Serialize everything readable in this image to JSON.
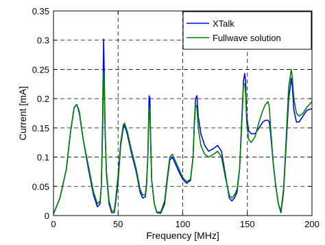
{
  "chart_data": {
    "type": "line",
    "xlabel": "Frequency [MHz]",
    "ylabel": "Current [mA]",
    "xlim": [
      0,
      200
    ],
    "ylim": [
      0,
      0.35
    ],
    "xticks": [
      "0",
      "50",
      "100",
      "150",
      "200"
    ],
    "yticks": [
      "0",
      "0.05",
      "0.1",
      "0.15",
      "0.2",
      "0.25",
      "0.3",
      "0.35"
    ],
    "grid": true,
    "legend_position": "top-right",
    "series": [
      {
        "name": "XTalk",
        "color": "#0000ff",
        "x": [
          0,
          5,
          10,
          13,
          16,
          18,
          20,
          23,
          27,
          31,
          34,
          36,
          37,
          38,
          38.8,
          39.3,
          40,
          41,
          43,
          45,
          47,
          48,
          50,
          52,
          54,
          55,
          57,
          60,
          64,
          67,
          69,
          71,
          72,
          73,
          74,
          74.6,
          75.2,
          76,
          78,
          80,
          83,
          86,
          88,
          90,
          92,
          94,
          97,
          100,
          103,
          106,
          108,
          109,
          110,
          111,
          112,
          114,
          117,
          120,
          124,
          127,
          130,
          133,
          136,
          138,
          140,
          142,
          144,
          146,
          147,
          148,
          148.6,
          149.5,
          151,
          153,
          156,
          159,
          162,
          164,
          166,
          167,
          168,
          170,
          172,
          174,
          176,
          178,
          180,
          182,
          184,
          184.8,
          186,
          188,
          190,
          193,
          196,
          200
        ],
        "values": [
          0.003,
          0.03,
          0.08,
          0.14,
          0.185,
          0.19,
          0.175,
          0.13,
          0.08,
          0.035,
          0.015,
          0.02,
          0.05,
          0.16,
          0.302,
          0.24,
          0.14,
          0.07,
          0.02,
          0.005,
          0.005,
          0.02,
          0.06,
          0.12,
          0.15,
          0.155,
          0.14,
          0.11,
          0.075,
          0.04,
          0.03,
          0.032,
          0.05,
          0.1,
          0.205,
          0.2,
          0.13,
          0.06,
          0.02,
          0.005,
          0.004,
          0.02,
          0.06,
          0.095,
          0.1,
          0.09,
          0.075,
          0.062,
          0.055,
          0.06,
          0.1,
          0.16,
          0.2,
          0.205,
          0.17,
          0.14,
          0.12,
          0.11,
          0.115,
          0.12,
          0.11,
          0.07,
          0.03,
          0.025,
          0.03,
          0.04,
          0.08,
          0.18,
          0.23,
          0.243,
          0.23,
          0.17,
          0.145,
          0.14,
          0.14,
          0.15,
          0.16,
          0.163,
          0.163,
          0.16,
          0.14,
          0.09,
          0.05,
          0.02,
          0.005,
          0.04,
          0.12,
          0.2,
          0.235,
          0.22,
          0.18,
          0.16,
          0.16,
          0.17,
          0.18,
          0.183
        ]
      },
      {
        "name": "Fullwave solution",
        "color": "#008000",
        "x": [
          0,
          5,
          10,
          13,
          16,
          18,
          20,
          23,
          27,
          31,
          34,
          36,
          37,
          38,
          38.8,
          39.3,
          40,
          41,
          43,
          45,
          47,
          48,
          50,
          52,
          54,
          55,
          57,
          60,
          64,
          67,
          69,
          71,
          72,
          73,
          74,
          74.6,
          75.2,
          76,
          78,
          80,
          83,
          86,
          88,
          90,
          92,
          94,
          97,
          100,
          103,
          106,
          108,
          109,
          110,
          111,
          112,
          114,
          117,
          120,
          124,
          127,
          130,
          133,
          136,
          138,
          140,
          142,
          144,
          146,
          147,
          148,
          148.6,
          149.5,
          151,
          153,
          156,
          159,
          162,
          164,
          166,
          167,
          168,
          170,
          172,
          174,
          176,
          178,
          180,
          182,
          184,
          184.8,
          186,
          188,
          190,
          193,
          196,
          200
        ],
        "values": [
          0.003,
          0.03,
          0.08,
          0.14,
          0.185,
          0.19,
          0.178,
          0.13,
          0.085,
          0.04,
          0.02,
          0.025,
          0.05,
          0.14,
          0.245,
          0.22,
          0.14,
          0.075,
          0.025,
          0.008,
          0.008,
          0.025,
          0.07,
          0.125,
          0.155,
          0.158,
          0.145,
          0.115,
          0.08,
          0.045,
          0.035,
          0.036,
          0.055,
          0.1,
          0.185,
          0.18,
          0.12,
          0.06,
          0.02,
          0.006,
          0.006,
          0.025,
          0.065,
          0.1,
          0.105,
          0.095,
          0.08,
          0.065,
          0.058,
          0.062,
          0.1,
          0.155,
          0.19,
          0.185,
          0.15,
          0.12,
          0.105,
          0.1,
          0.105,
          0.11,
          0.1,
          0.065,
          0.035,
          0.03,
          0.035,
          0.045,
          0.08,
          0.17,
          0.225,
          0.225,
          0.21,
          0.16,
          0.13,
          0.125,
          0.135,
          0.16,
          0.18,
          0.19,
          0.195,
          0.185,
          0.15,
          0.09,
          0.05,
          0.02,
          0.008,
          0.045,
          0.13,
          0.22,
          0.25,
          0.235,
          0.2,
          0.175,
          0.17,
          0.175,
          0.185,
          0.195
        ]
      }
    ]
  }
}
